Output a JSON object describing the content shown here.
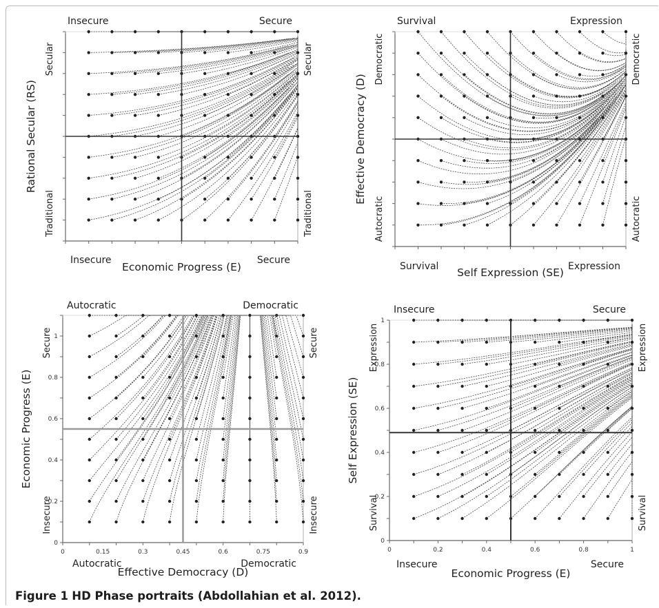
{
  "caption": {
    "label": "Figure 1",
    "text": "HD Phase portraits (Abdollahian et al. 2012)."
  },
  "chart_data": [
    {
      "type": "line",
      "title": "",
      "xlabel": "Economic Progress (E)",
      "ylabel": "Rational Secular (RS)",
      "top_labels": [
        "Insecure",
        "Secure"
      ],
      "bottom_labels": [
        "Insecure",
        "Secure"
      ],
      "left_labels": [
        "Secular",
        "Traditional"
      ],
      "right_labels": [
        "Secular",
        "Traditional"
      ],
      "xlim": [
        0,
        1
      ],
      "ylim": [
        0,
        1
      ],
      "divider": {
        "x": 0.5,
        "y": 0.5
      },
      "attractor": [
        1,
        1
      ],
      "grid_step": 0.1
    },
    {
      "type": "line",
      "title": "",
      "xlabel": "Self Expression (SE)",
      "ylabel": "Effective Democracy (D)",
      "top_labels": [
        "Survival",
        "Expression"
      ],
      "bottom_labels": [
        "Survival",
        "Expression"
      ],
      "left_labels": [
        "Democratic",
        "Autocratic"
      ],
      "right_labels": [
        "Democratic",
        "Autocratic"
      ],
      "xlim": [
        0,
        1
      ],
      "ylim": [
        0,
        1
      ],
      "divider": {
        "x": 0.5,
        "y": 0.5
      },
      "attractor": [
        1,
        0.7
      ],
      "grid_step": 0.1
    },
    {
      "type": "line",
      "title": "",
      "xlabel": "Effective Democracy (D)",
      "ylabel": "Economic Progress (E)",
      "top_labels": [
        "Autocratic",
        "Democratic"
      ],
      "bottom_labels": [
        "Autocratic",
        "Democratic"
      ],
      "left_labels": [
        "Secure",
        "Insecure"
      ],
      "right_labels": [
        "Secure",
        "Insecure"
      ],
      "xlim": [
        0,
        0.9
      ],
      "ylim": [
        0,
        1.1
      ],
      "x_ticks": [
        "0",
        "0.15",
        "0.3",
        "0.45",
        "0.6",
        "0.75",
        "0.9"
      ],
      "y_ticks": [
        "0",
        "0.2",
        "0.4",
        "0.6",
        "0.8",
        "1"
      ],
      "divider": {
        "x": 0.45,
        "y": 0.55
      },
      "attractor": [
        0.7,
        1.1
      ],
      "grid_step": 0.1
    },
    {
      "type": "line",
      "title": "",
      "xlabel": "Economic Progress (E)",
      "ylabel": "Self Expression (SE)",
      "top_labels": [
        "Insecure",
        "Secure"
      ],
      "bottom_labels": [
        "Insecure",
        "Secure"
      ],
      "left_labels": [
        "Expression",
        "Survival"
      ],
      "right_labels": [
        "Expression",
        "Survival"
      ],
      "xlim": [
        0,
        1
      ],
      "ylim": [
        0,
        1
      ],
      "x_ticks": [
        "0",
        "0.2",
        "0.4",
        "0.6",
        "0.8",
        "1"
      ],
      "y_ticks": [
        "0",
        "0.2",
        "0.4",
        "0.6",
        "0.8",
        "1"
      ],
      "divider": {
        "x": 0.5,
        "y": 0.49
      },
      "attractor": [
        1,
        1
      ],
      "grid_step": 0.1
    }
  ]
}
